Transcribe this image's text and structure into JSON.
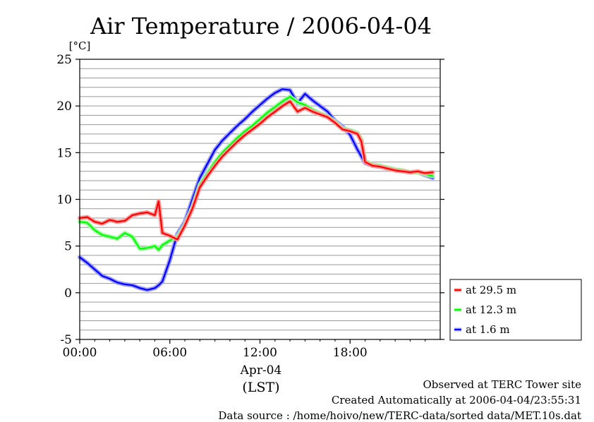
{
  "chart_data": {
    "type": "line",
    "title": "Air Temperature / 2006-04-04",
    "y_unit": "[°C]",
    "ylim": [
      -5,
      25
    ],
    "y_ticks": [
      "25",
      "20",
      "15",
      "10",
      "5",
      "0",
      "-5"
    ],
    "x_ticks": [
      "00:00",
      "06:00",
      "12:00",
      "18:00"
    ],
    "x_tick_hours": [
      0,
      6,
      12,
      18
    ],
    "xlim": [
      0,
      24
    ],
    "x_date_label": "Apr-04",
    "x_label": "(LST)",
    "grid": true,
    "legend_position": "right",
    "x": [
      0,
      0.5,
      1,
      1.5,
      2,
      2.5,
      3,
      3.5,
      4,
      4.5,
      5,
      5.25,
      5.5,
      6,
      6.5,
      7,
      7.5,
      8,
      8.5,
      9,
      9.5,
      10,
      10.5,
      11,
      11.5,
      12,
      12.5,
      13,
      13.5,
      14,
      14.5,
      15,
      15.5,
      16,
      16.5,
      17,
      17.5,
      18,
      18.5,
      18.75,
      19,
      19.5,
      20,
      20.5,
      21,
      21.5,
      22,
      22.5,
      23,
      23.5
    ],
    "series": [
      {
        "name": "at 29.5 m",
        "color": "#ff0000",
        "values": [
          8.0,
          8.1,
          7.6,
          7.4,
          7.8,
          7.6,
          7.7,
          8.3,
          8.5,
          8.6,
          8.3,
          9.8,
          6.4,
          6.1,
          5.7,
          7.2,
          9.0,
          11.3,
          12.5,
          13.6,
          14.6,
          15.4,
          16.2,
          16.9,
          17.5,
          18.1,
          18.8,
          19.4,
          20.0,
          20.5,
          19.4,
          19.8,
          19.4,
          19.1,
          18.8,
          18.2,
          17.5,
          17.3,
          17.0,
          16.2,
          14.0,
          13.6,
          13.5,
          13.3,
          13.1,
          13.0,
          12.9,
          13.0,
          12.8,
          12.9
        ]
      },
      {
        "name": "at 12.3 m",
        "color": "#00ff00",
        "values": [
          7.6,
          7.5,
          6.7,
          6.2,
          6.0,
          5.8,
          6.4,
          6.0,
          4.7,
          4.8,
          5.0,
          4.6,
          5.1,
          5.6,
          6.0,
          7.3,
          9.2,
          11.6,
          12.8,
          14.0,
          15.0,
          15.8,
          16.6,
          17.3,
          17.9,
          18.6,
          19.3,
          19.9,
          20.5,
          21.0,
          20.4,
          20.1,
          19.6,
          19.2,
          18.9,
          18.3,
          17.6,
          17.4,
          17.1,
          16.4,
          14.1,
          13.7,
          13.6,
          13.4,
          13.2,
          13.1,
          12.9,
          12.9,
          12.7,
          12.5
        ]
      },
      {
        "name": "at 1.6 m",
        "color": "#0000ff",
        "values": [
          3.8,
          3.2,
          2.5,
          1.8,
          1.5,
          1.1,
          0.9,
          0.8,
          0.5,
          0.3,
          0.5,
          0.8,
          1.2,
          3.5,
          6.3,
          7.6,
          10.0,
          12.3,
          13.8,
          15.3,
          16.3,
          17.1,
          17.9,
          18.6,
          19.4,
          20.1,
          20.8,
          21.4,
          21.8,
          21.7,
          20.3,
          21.3,
          20.6,
          20.0,
          19.4,
          18.4,
          17.8,
          16.9,
          15.3,
          14.6,
          13.9,
          13.6,
          13.5,
          13.3,
          13.2,
          13.0,
          12.9,
          12.9,
          12.6,
          12.3
        ]
      }
    ]
  },
  "footer": {
    "line1": "Observed at TERC Tower site",
    "line2": "Created Automatically at 2006-04-04/23:55:31",
    "line3": "Data source : /home/hoivo/new/TERC-data/sorted  data/MET.10s.dat"
  }
}
